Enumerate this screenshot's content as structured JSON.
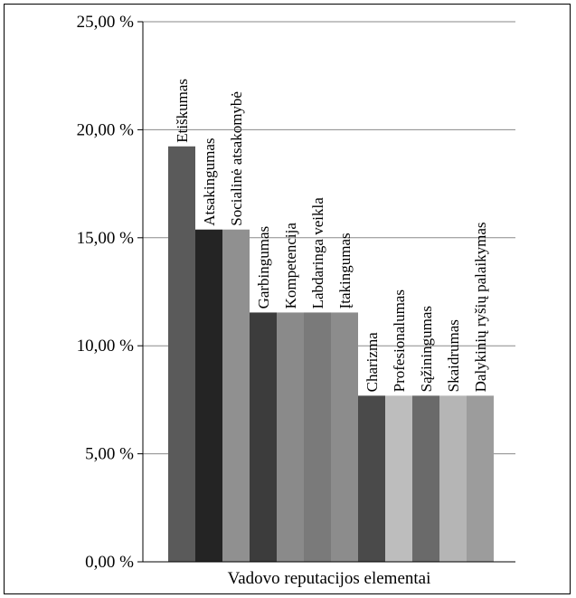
{
  "chart_data": {
    "type": "bar",
    "title": "",
    "xlabel": "Vadovo reputacijos elementai",
    "ylabel": "",
    "ylim": [
      0,
      25
    ],
    "yticks": [
      0,
      5,
      10,
      15,
      20,
      25
    ],
    "ytick_labels": [
      "0,00 %",
      "5,00 %",
      "10,00 %",
      "15,00 %",
      "20,00 %",
      "25,00 %"
    ],
    "grid": true,
    "legend": "none",
    "categories": [
      "Etiškumas",
      "Atsakingumas",
      "Socialinė atsakomybė",
      "Garbingumas",
      "Kompetencija",
      "Labdaringa veikla",
      "Įtakingumas",
      "Charizma",
      "Profesionalumas",
      "Sąžiningumas",
      "Skaidrumas",
      "Dalykinių ryšių palaikymas"
    ],
    "values": [
      19.23,
      15.38,
      15.38,
      11.54,
      11.54,
      11.54,
      11.54,
      7.69,
      7.69,
      7.69,
      7.69,
      7.69
    ],
    "colors": [
      "#5a5a5a",
      "#242424",
      "#909090",
      "#3c3c3c",
      "#8a8a8a",
      "#7a7a7a",
      "#8c8c8c",
      "#4a4a4a",
      "#bdbdbd",
      "#6a6a6a",
      "#b5b5b5",
      "#9c9c9c"
    ]
  }
}
